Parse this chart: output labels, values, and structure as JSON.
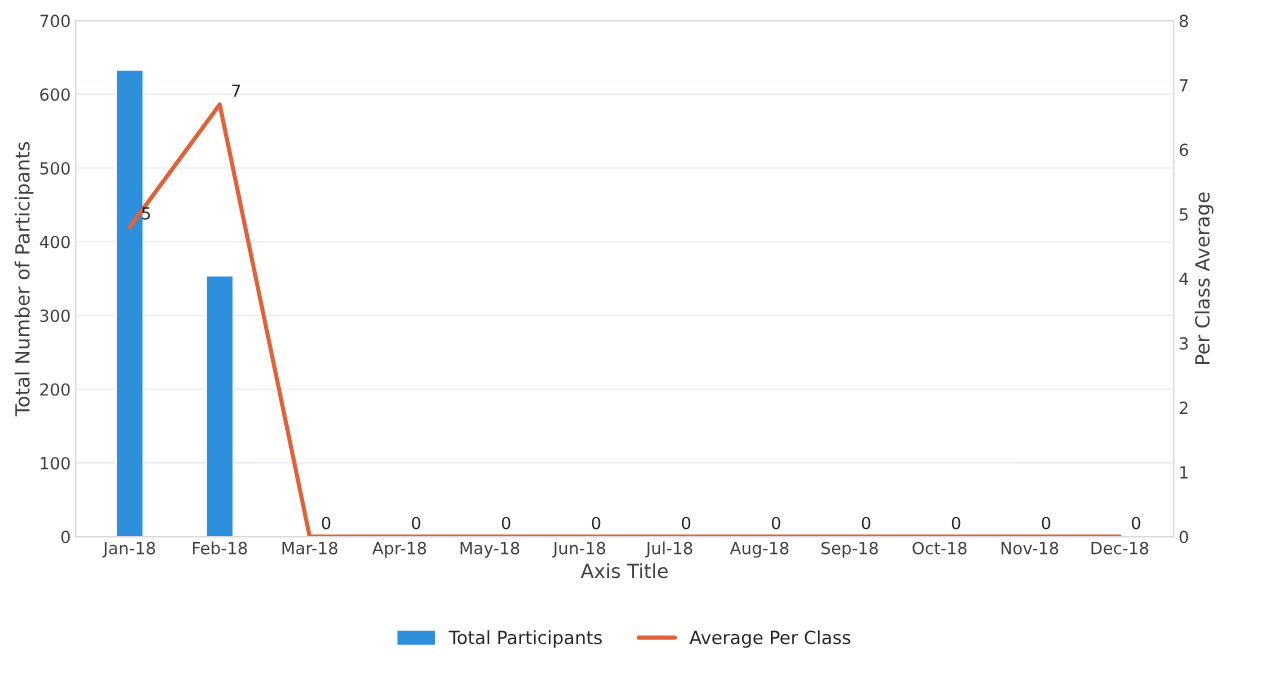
{
  "chart_data": {
    "type": "bar",
    "xlabel": "Axis Title",
    "ylabel": "Total Number of Participants",
    "y2label": "Per Class Average",
    "categories": [
      "Jan-18",
      "Feb-18",
      "Mar-18",
      "Apr-18",
      "May-18",
      "Jun-18",
      "Jul-18",
      "Aug-18",
      "Sep-18",
      "Oct-18",
      "Nov-18",
      "Dec-18"
    ],
    "series": [
      {
        "name": "Total Participants",
        "color": "#2e8fdc",
        "values": [
          633,
          354,
          null,
          null,
          null,
          null,
          null,
          null,
          null,
          null,
          null,
          null
        ]
      },
      {
        "name": "Average Per Class",
        "type": "line",
        "axis": "y2",
        "color": "#e0623a",
        "values": [
          4.8,
          6.7,
          0,
          0,
          0,
          0,
          0,
          0,
          0,
          0,
          0,
          0
        ],
        "value_labels": [
          "5",
          "7",
          "0",
          "0",
          "0",
          "0",
          "0",
          "0",
          "0",
          "0",
          "0",
          "0"
        ]
      }
    ],
    "ylim": [
      0,
      700
    ],
    "yticks": [
      0,
      100,
      200,
      300,
      400,
      500,
      600,
      700
    ],
    "y2lim": [
      0,
      8
    ],
    "y2ticks": [
      0,
      1,
      2,
      3,
      4,
      5,
      6,
      7,
      8
    ],
    "grid": "y",
    "legend": "bottom",
    "marker": "none"
  }
}
